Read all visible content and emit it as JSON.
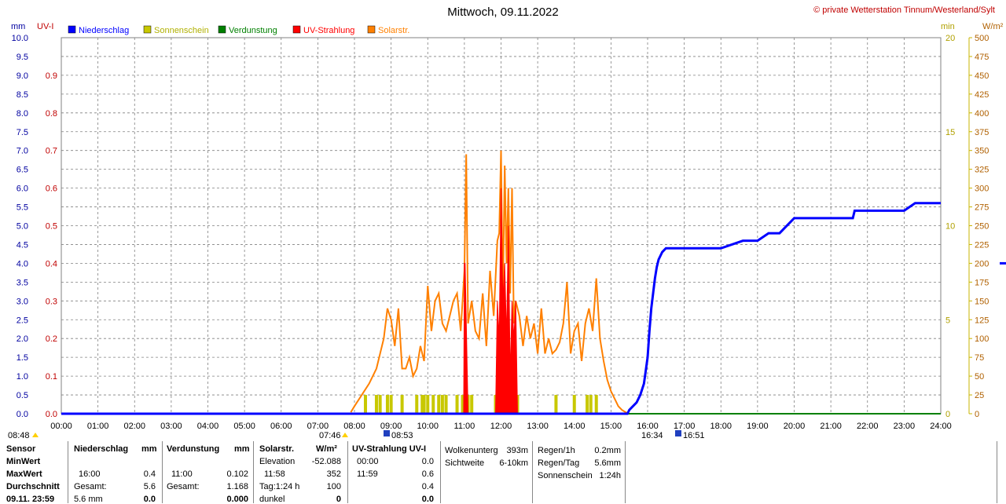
{
  "title": "Mittwoch, 09.11.2022",
  "credit": "© private Wetterstation Tinnum/Westerland/Sylt",
  "colors": {
    "rain": "#0000ff",
    "sun": "#c8c800",
    "evap": "#008000",
    "uv": "#ff0000",
    "solar": "#ff8000",
    "grid": "#808080"
  },
  "chart_data": {
    "type": "line",
    "legend": [
      "Niederschlag",
      "Sonnenschein",
      "Verdunstung",
      "UV-Strahlung",
      "Solarstr."
    ],
    "axes": {
      "left_mm": {
        "label": "mm",
        "range": [
          0,
          10
        ],
        "ticks": [
          "0.0",
          "0.5",
          "1.0",
          "1.5",
          "2.0",
          "2.5",
          "3.0",
          "3.5",
          "4.0",
          "4.5",
          "5.0",
          "5.5",
          "6.0",
          "6.5",
          "7.0",
          "7.5",
          "8.0",
          "8.5",
          "9.0",
          "9.5",
          "10.0"
        ]
      },
      "left_uv": {
        "label": "UV-I",
        "range": [
          0,
          1
        ],
        "ticks": [
          "0.0",
          "0.1",
          "0.2",
          "0.3",
          "0.4",
          "0.5",
          "0.6",
          "0.7",
          "0.8",
          "0.9"
        ]
      },
      "right_min": {
        "label": "min",
        "range": [
          0,
          20
        ],
        "ticks": [
          "0",
          "5",
          "10",
          "15",
          "20"
        ]
      },
      "right_wm2": {
        "label": "W/m²",
        "range": [
          0,
          500
        ],
        "ticks": [
          "0",
          "25",
          "50",
          "75",
          "100",
          "125",
          "150",
          "175",
          "200",
          "225",
          "250",
          "275",
          "300",
          "325",
          "350",
          "375",
          "400",
          "425",
          "450",
          "475",
          "500"
        ]
      },
      "x": {
        "range": [
          0,
          24
        ],
        "ticks": [
          "00:00",
          "01:00",
          "02:00",
          "03:00",
          "04:00",
          "05:00",
          "06:00",
          "07:00",
          "08:00",
          "09:00",
          "10:00",
          "11:00",
          "12:00",
          "13:00",
          "14:00",
          "15:00",
          "16:00",
          "17:00",
          "18:00",
          "19:00",
          "20:00",
          "21:00",
          "22:00",
          "23:00",
          "24:00"
        ]
      }
    },
    "grid": true,
    "series": [
      {
        "name": "Niederschlag",
        "unit": "mm",
        "x": [
          0,
          15.45,
          15.5,
          15.6,
          15.7,
          15.8,
          15.9,
          16.0,
          16.05,
          16.1,
          16.15,
          16.2,
          16.25,
          16.3,
          16.4,
          16.5,
          16.6,
          16.8,
          17.0,
          17.5,
          18.0,
          18.6,
          18.7,
          19.0,
          19.3,
          19.4,
          19.6,
          20.0,
          21.0,
          21.6,
          21.65,
          22.0,
          23.0,
          23.3,
          23.35,
          24.0
        ],
        "y": [
          0,
          0,
          0.1,
          0.2,
          0.3,
          0.5,
          0.8,
          1.5,
          2.2,
          2.8,
          3.2,
          3.6,
          3.9,
          4.1,
          4.3,
          4.4,
          4.4,
          4.4,
          4.4,
          4.4,
          4.4,
          4.6,
          4.6,
          4.6,
          4.8,
          4.8,
          4.8,
          5.2,
          5.2,
          5.2,
          5.4,
          5.4,
          5.4,
          5.6,
          5.6,
          5.6
        ]
      },
      {
        "name": "Solarstr.",
        "unit": "W/m²",
        "x": [
          7.9,
          8.0,
          8.2,
          8.4,
          8.6,
          8.8,
          8.9,
          9.0,
          9.1,
          9.2,
          9.3,
          9.4,
          9.5,
          9.6,
          9.7,
          9.8,
          9.9,
          10.0,
          10.1,
          10.2,
          10.3,
          10.4,
          10.5,
          10.6,
          10.7,
          10.8,
          10.9,
          11.0,
          11.05,
          11.1,
          11.2,
          11.3,
          11.4,
          11.5,
          11.6,
          11.7,
          11.8,
          11.9,
          11.95,
          12.0,
          12.05,
          12.1,
          12.15,
          12.2,
          12.25,
          12.3,
          12.35,
          12.4,
          12.5,
          12.6,
          12.7,
          12.8,
          12.9,
          13.0,
          13.1,
          13.2,
          13.3,
          13.4,
          13.5,
          13.6,
          13.7,
          13.8,
          13.9,
          14.0,
          14.1,
          14.2,
          14.3,
          14.4,
          14.5,
          14.6,
          14.7,
          14.8,
          14.9,
          15.0,
          15.1,
          15.2,
          15.3,
          15.4,
          15.5
        ],
        "y": [
          2,
          10,
          25,
          40,
          60,
          100,
          140,
          125,
          90,
          140,
          60,
          60,
          75,
          50,
          60,
          90,
          70,
          170,
          110,
          150,
          160,
          120,
          110,
          130,
          150,
          160,
          110,
          190,
          345,
          120,
          150,
          110,
          100,
          160,
          90,
          190,
          130,
          230,
          240,
          350,
          150,
          330,
          200,
          300,
          160,
          300,
          120,
          150,
          130,
          90,
          130,
          100,
          120,
          80,
          140,
          80,
          100,
          80,
          85,
          95,
          120,
          175,
          80,
          110,
          120,
          70,
          120,
          140,
          110,
          180,
          100,
          70,
          45,
          30,
          20,
          10,
          5,
          2,
          0
        ]
      },
      {
        "name": "UV-Strahlung",
        "unit": "UV-I",
        "x": [
          10.98,
          11.0,
          11.02,
          11.04,
          11.06,
          11.08,
          11.1,
          11.2,
          11.85,
          11.9,
          11.95,
          12.0,
          12.05,
          12.1,
          12.15,
          12.2,
          12.25,
          12.3,
          12.35,
          12.4,
          12.45
        ],
        "y": [
          0,
          0.4,
          0.4,
          0.3,
          0.2,
          0.1,
          0,
          0,
          0,
          0.3,
          0.2,
          0.6,
          0.3,
          0.4,
          0.2,
          0.5,
          0.1,
          0.3,
          0.2,
          0.3,
          0
        ]
      },
      {
        "name": "Sonnenschein",
        "unit": "min",
        "x": [
          8.3,
          8.6,
          8.7,
          8.9,
          9.0,
          9.3,
          9.7,
          9.85,
          9.9,
          10.0,
          10.15,
          10.3,
          10.4,
          10.5,
          10.8,
          10.95,
          11.0,
          11.1,
          11.2,
          11.85,
          11.9,
          11.95,
          12.0,
          12.05,
          12.1,
          12.15,
          12.2,
          12.25,
          12.3,
          12.35,
          12.4,
          12.45,
          13.5,
          14.0,
          14.35,
          14.45,
          14.6
        ],
        "y": [
          1,
          1,
          1,
          1,
          1,
          1,
          1,
          1,
          1,
          1,
          1,
          1,
          1,
          1,
          1,
          1,
          1,
          1,
          1,
          1,
          1,
          1,
          1,
          1,
          1,
          1,
          1,
          1,
          1,
          1,
          1,
          1,
          1,
          1,
          1,
          1,
          1
        ]
      },
      {
        "name": "Verdunstung",
        "unit": "mm",
        "x": [
          0,
          24
        ],
        "y": [
          0,
          0
        ]
      }
    ]
  },
  "markers": {
    "sunrise_left": "08:48",
    "sunrise": "07:46",
    "sun_marker_a": "08:53",
    "sunset_left": "16:34",
    "sun_marker_b": "16:51"
  },
  "stats": {
    "labels": [
      "Sensor",
      "MinWert",
      "MaxWert",
      "Durchschnitt",
      "09.11. 23:59"
    ],
    "rain": {
      "header": "Niederschlag",
      "unit": "mm",
      "max_time": "16:00",
      "max": "0.4",
      "total_label": "Gesamt:",
      "total": "5.6",
      "last": "5.6 mm",
      "last_val": "0.0"
    },
    "evap": {
      "header": "Verdunstung",
      "unit": "mm",
      "max_time": "11:00",
      "max": "0.102",
      "total_label": "Gesamt:",
      "total": "1.168",
      "last_val": "0.000"
    },
    "solar": {
      "header": "Solarstr.",
      "unit": "W/m²",
      "elev_label": "Elevation",
      "elev": "-52.088",
      "max_time": "11:58",
      "max": "352",
      "day_label": "Tag:1:24 h",
      "day": "100",
      "dark_label": "dunkel",
      "dark": "0"
    },
    "uv": {
      "header": "UV-Strahlung UV-I",
      "min_time": "00:00",
      "min": "0.0",
      "max_time": "11:59",
      "max": "0.6",
      "avg": "0.4",
      "last": "0.0"
    },
    "cloud": {
      "base_label": "Wolkenunterg",
      "base": "393m",
      "vis_label": "Sichtweite",
      "vis": "6-10km"
    },
    "rainrate": {
      "h_label": "Regen/1h",
      "h": "0.2mm",
      "day_label": "Regen/Tag",
      "day": "5.6mm",
      "sun_label": "Sonnenschein",
      "sun": "1:24h"
    }
  }
}
